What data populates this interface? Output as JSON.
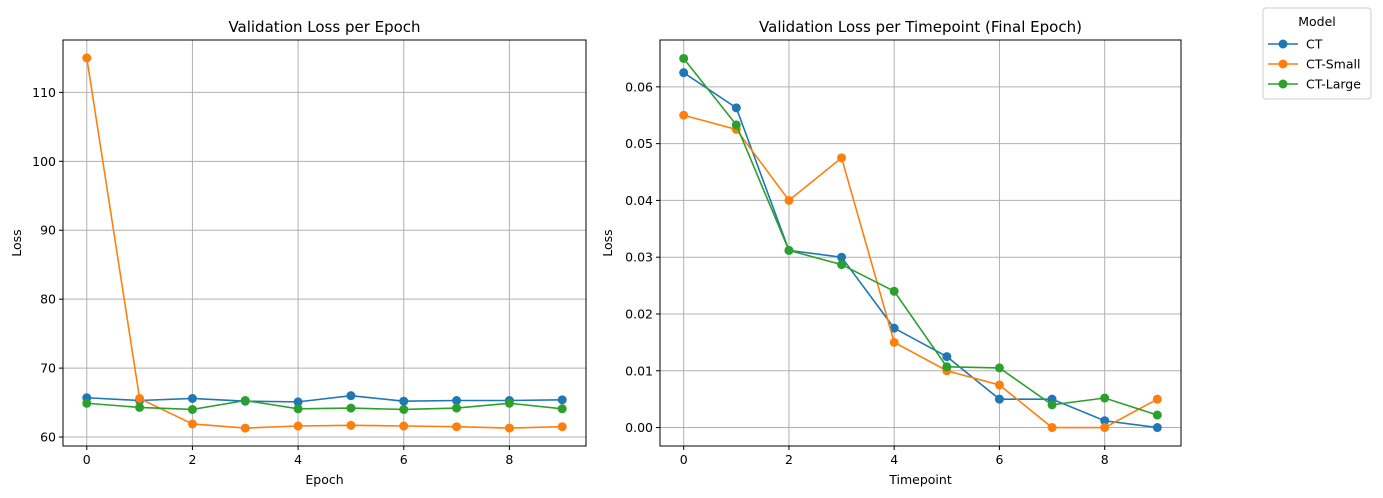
{
  "legend": {
    "title": "Model",
    "entries": [
      "CT",
      "CT-Small",
      "CT-Large"
    ]
  },
  "chart_data": [
    {
      "type": "line",
      "title": "Validation Loss per Epoch",
      "xlabel": "Epoch",
      "ylabel": "Loss",
      "x": [
        0,
        1,
        2,
        3,
        4,
        5,
        6,
        7,
        8,
        9
      ],
      "xlim": [
        -0.45,
        9.45
      ],
      "ylim": [
        58.7,
        117.6
      ],
      "xticks": [
        0,
        2,
        4,
        6,
        8
      ],
      "yticks": [
        60,
        70,
        80,
        90,
        100,
        110
      ],
      "grid": true,
      "series": [
        {
          "name": "CT",
          "color": "#1f77b4",
          "values": [
            65.7,
            65.3,
            65.6,
            65.2,
            65.1,
            66.0,
            65.2,
            65.3,
            65.3,
            65.4
          ]
        },
        {
          "name": "CT-Small",
          "color": "#ff7f0e",
          "values": [
            115.0,
            65.6,
            61.9,
            61.3,
            61.6,
            61.7,
            61.6,
            61.5,
            61.3,
            61.5
          ]
        },
        {
          "name": "CT-Large",
          "color": "#2ca02c",
          "values": [
            64.9,
            64.3,
            64.0,
            65.3,
            64.1,
            64.2,
            64.0,
            64.2,
            64.9,
            64.1
          ]
        }
      ]
    },
    {
      "type": "line",
      "title": "Validation Loss per Timepoint (Final Epoch)",
      "xlabel": "Timepoint",
      "ylabel": "Loss",
      "x": [
        0,
        1,
        2,
        3,
        4,
        5,
        6,
        7,
        8,
        9
      ],
      "xlim": [
        -0.45,
        9.45
      ],
      "ylim": [
        -0.00325,
        0.06825
      ],
      "xticks": [
        0,
        2,
        4,
        6,
        8
      ],
      "yticks": [
        0.0,
        0.01,
        0.02,
        0.03,
        0.04,
        0.05,
        0.06
      ],
      "ytick_labels": [
        "0.00",
        "0.01",
        "0.02",
        "0.03",
        "0.04",
        "0.05",
        "0.06"
      ],
      "grid": true,
      "series": [
        {
          "name": "CT",
          "color": "#1f77b4",
          "values": [
            0.0625,
            0.0563,
            0.0312,
            0.03,
            0.0175,
            0.0125,
            0.005,
            0.005,
            0.0012,
            0.0
          ]
        },
        {
          "name": "CT-Small",
          "color": "#ff7f0e",
          "values": [
            0.055,
            0.0525,
            0.04,
            0.0475,
            0.015,
            0.01,
            0.0075,
            0.0,
            0.0,
            0.005
          ]
        },
        {
          "name": "CT-Large",
          "color": "#2ca02c",
          "values": [
            0.065,
            0.0533,
            0.0312,
            0.0287,
            0.024,
            0.0107,
            0.0105,
            0.004,
            0.0052,
            0.0022
          ]
        }
      ]
    }
  ]
}
